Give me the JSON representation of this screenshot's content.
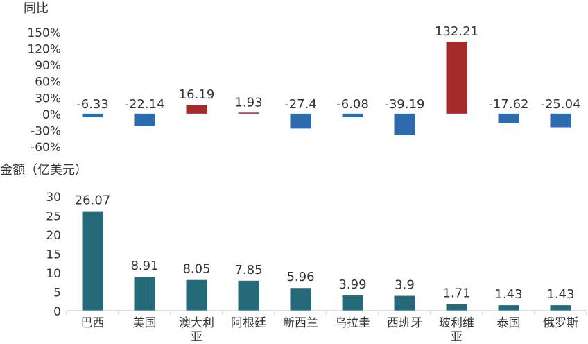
{
  "chart_data": [
    {
      "type": "bar",
      "title": "同比",
      "categories": [
        "巴西",
        "美国",
        "澳大利亚",
        "阿根廷",
        "新西兰",
        "乌拉圭",
        "西班牙",
        "玻利维亚",
        "泰国",
        "俄罗斯"
      ],
      "values": [
        -6.33,
        -22.14,
        16.19,
        1.93,
        -27.4,
        -6.08,
        -39.19,
        132.21,
        -17.62,
        -25.04
      ],
      "data_labels": [
        "-6.33",
        "-22.14",
        "16.19",
        "1.93",
        "-27.4",
        "-6.08",
        "-39.19",
        "132.21",
        "-17.62",
        "-25.04"
      ],
      "ylabel": "同比",
      "yticks": [
        "150%",
        "120%",
        "90%",
        "60%",
        "30%",
        "0%",
        "-30%",
        "-60%"
      ],
      "ylim": [
        -60,
        150
      ],
      "unit": "%",
      "grid": false,
      "colors": {
        "positive": "#A5282A",
        "negative": "#2E6BAE"
      }
    },
    {
      "type": "bar",
      "title": "金额（亿美元）",
      "categories": [
        "巴西",
        "美国",
        "澳大利亚",
        "阿根廷",
        "新西兰",
        "乌拉圭",
        "西班牙",
        "玻利维亚",
        "泰国",
        "俄罗斯"
      ],
      "category_labels": [
        [
          "巴西"
        ],
        [
          "美国"
        ],
        [
          "澳大利",
          "亚"
        ],
        [
          "阿根廷"
        ],
        [
          "新西兰"
        ],
        [
          "乌拉圭"
        ],
        [
          "西班牙"
        ],
        [
          "玻利维",
          "亚"
        ],
        [
          "泰国"
        ],
        [
          "俄罗斯"
        ]
      ],
      "values": [
        26.07,
        8.91,
        8.05,
        7.85,
        5.96,
        3.99,
        3.9,
        1.71,
        1.43,
        1.43
      ],
      "data_labels": [
        "26.07",
        "8.91",
        "8.05",
        "7.85",
        "5.96",
        "3.99",
        "3.9",
        "1.71",
        "1.43",
        "1.43"
      ],
      "ylabel": "金额（亿美元）",
      "yticks": [
        "30",
        "25",
        "20",
        "15",
        "10",
        "5",
        "0"
      ],
      "ylim": [
        0,
        30
      ],
      "grid": false,
      "colors": {
        "bar": "#256A78",
        "axis": "#BFBFBF"
      }
    }
  ]
}
